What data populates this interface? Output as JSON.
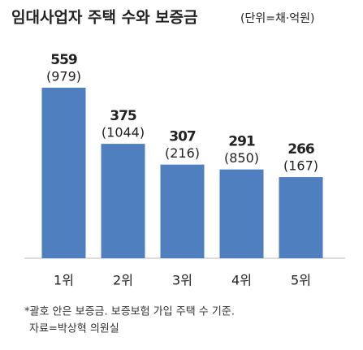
{
  "chart_data": {
    "type": "bar",
    "title": "임대사업자 주택 수와 보증금",
    "subtitle": "(단위=채·억원)",
    "categories": [
      "1위",
      "2위",
      "3위",
      "4위",
      "5위"
    ],
    "values": [
      559,
      375,
      307,
      291,
      266
    ],
    "deposits": [
      979,
      1044,
      216,
      850,
      167
    ],
    "deposit_labels": [
      "(979)",
      "(1044)",
      "(216)",
      "(850)",
      "(167)"
    ],
    "color": "#4f7fbf",
    "notes": [
      "*괄호 안은 보증금. 보증보험 가입 주택 수 기준.",
      "자료=박상혁 의원실"
    ]
  }
}
